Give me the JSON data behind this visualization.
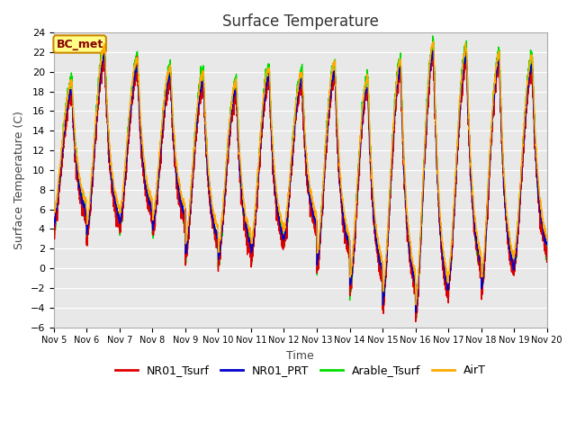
{
  "title": "Surface Temperature",
  "ylabel": "Surface Temperature (C)",
  "xlabel": "Time",
  "annotation": "BC_met",
  "ylim": [
    -6,
    24
  ],
  "yticks": [
    -6,
    -4,
    -2,
    0,
    2,
    4,
    6,
    8,
    10,
    12,
    14,
    16,
    18,
    20,
    22,
    24
  ],
  "xtick_labels": [
    "Nov 5",
    "Nov 6",
    "Nov 7",
    "Nov 8",
    "Nov 9",
    "Nov 10",
    "Nov 11",
    "Nov 12",
    "Nov 13",
    "Nov 14",
    "Nov 15",
    "Nov 16",
    "Nov 17",
    "Nov 18",
    "Nov 19",
    "Nov 20"
  ],
  "series_colors": {
    "NR01_Tsurf": "#dd0000",
    "NR01_PRT": "#0000cc",
    "Arable_Tsurf": "#00dd00",
    "AirT": "#ffaa00"
  },
  "series_labels": [
    "NR01_Tsurf",
    "NR01_PRT",
    "Arable_Tsurf",
    "AirT"
  ],
  "fig_bg_color": "#ffffff",
  "plot_bg_color": "#e8e8e8",
  "grid_color": "#ffffff",
  "title_fontsize": 12,
  "axis_label_fontsize": 9,
  "tick_fontsize": 8,
  "legend_fontsize": 9,
  "linewidth": 1.0,
  "n_per_day": 288,
  "n_days": 15,
  "day_peaks": [
    17.5,
    21.0,
    19.8,
    19.0,
    18.5,
    17.5,
    19.0,
    18.5,
    19.5,
    18.0,
    19.8,
    21.5,
    21.0,
    20.5,
    20.0
  ],
  "day_mins": [
    4.0,
    3.0,
    4.0,
    3.5,
    1.0,
    0.5,
    1.0,
    2.5,
    0.0,
    -2.5,
    -4.0,
    -5.0,
    -2.0,
    -2.5,
    0.0
  ],
  "peak_hour": 0.55,
  "cooling_steepness": 3.0
}
